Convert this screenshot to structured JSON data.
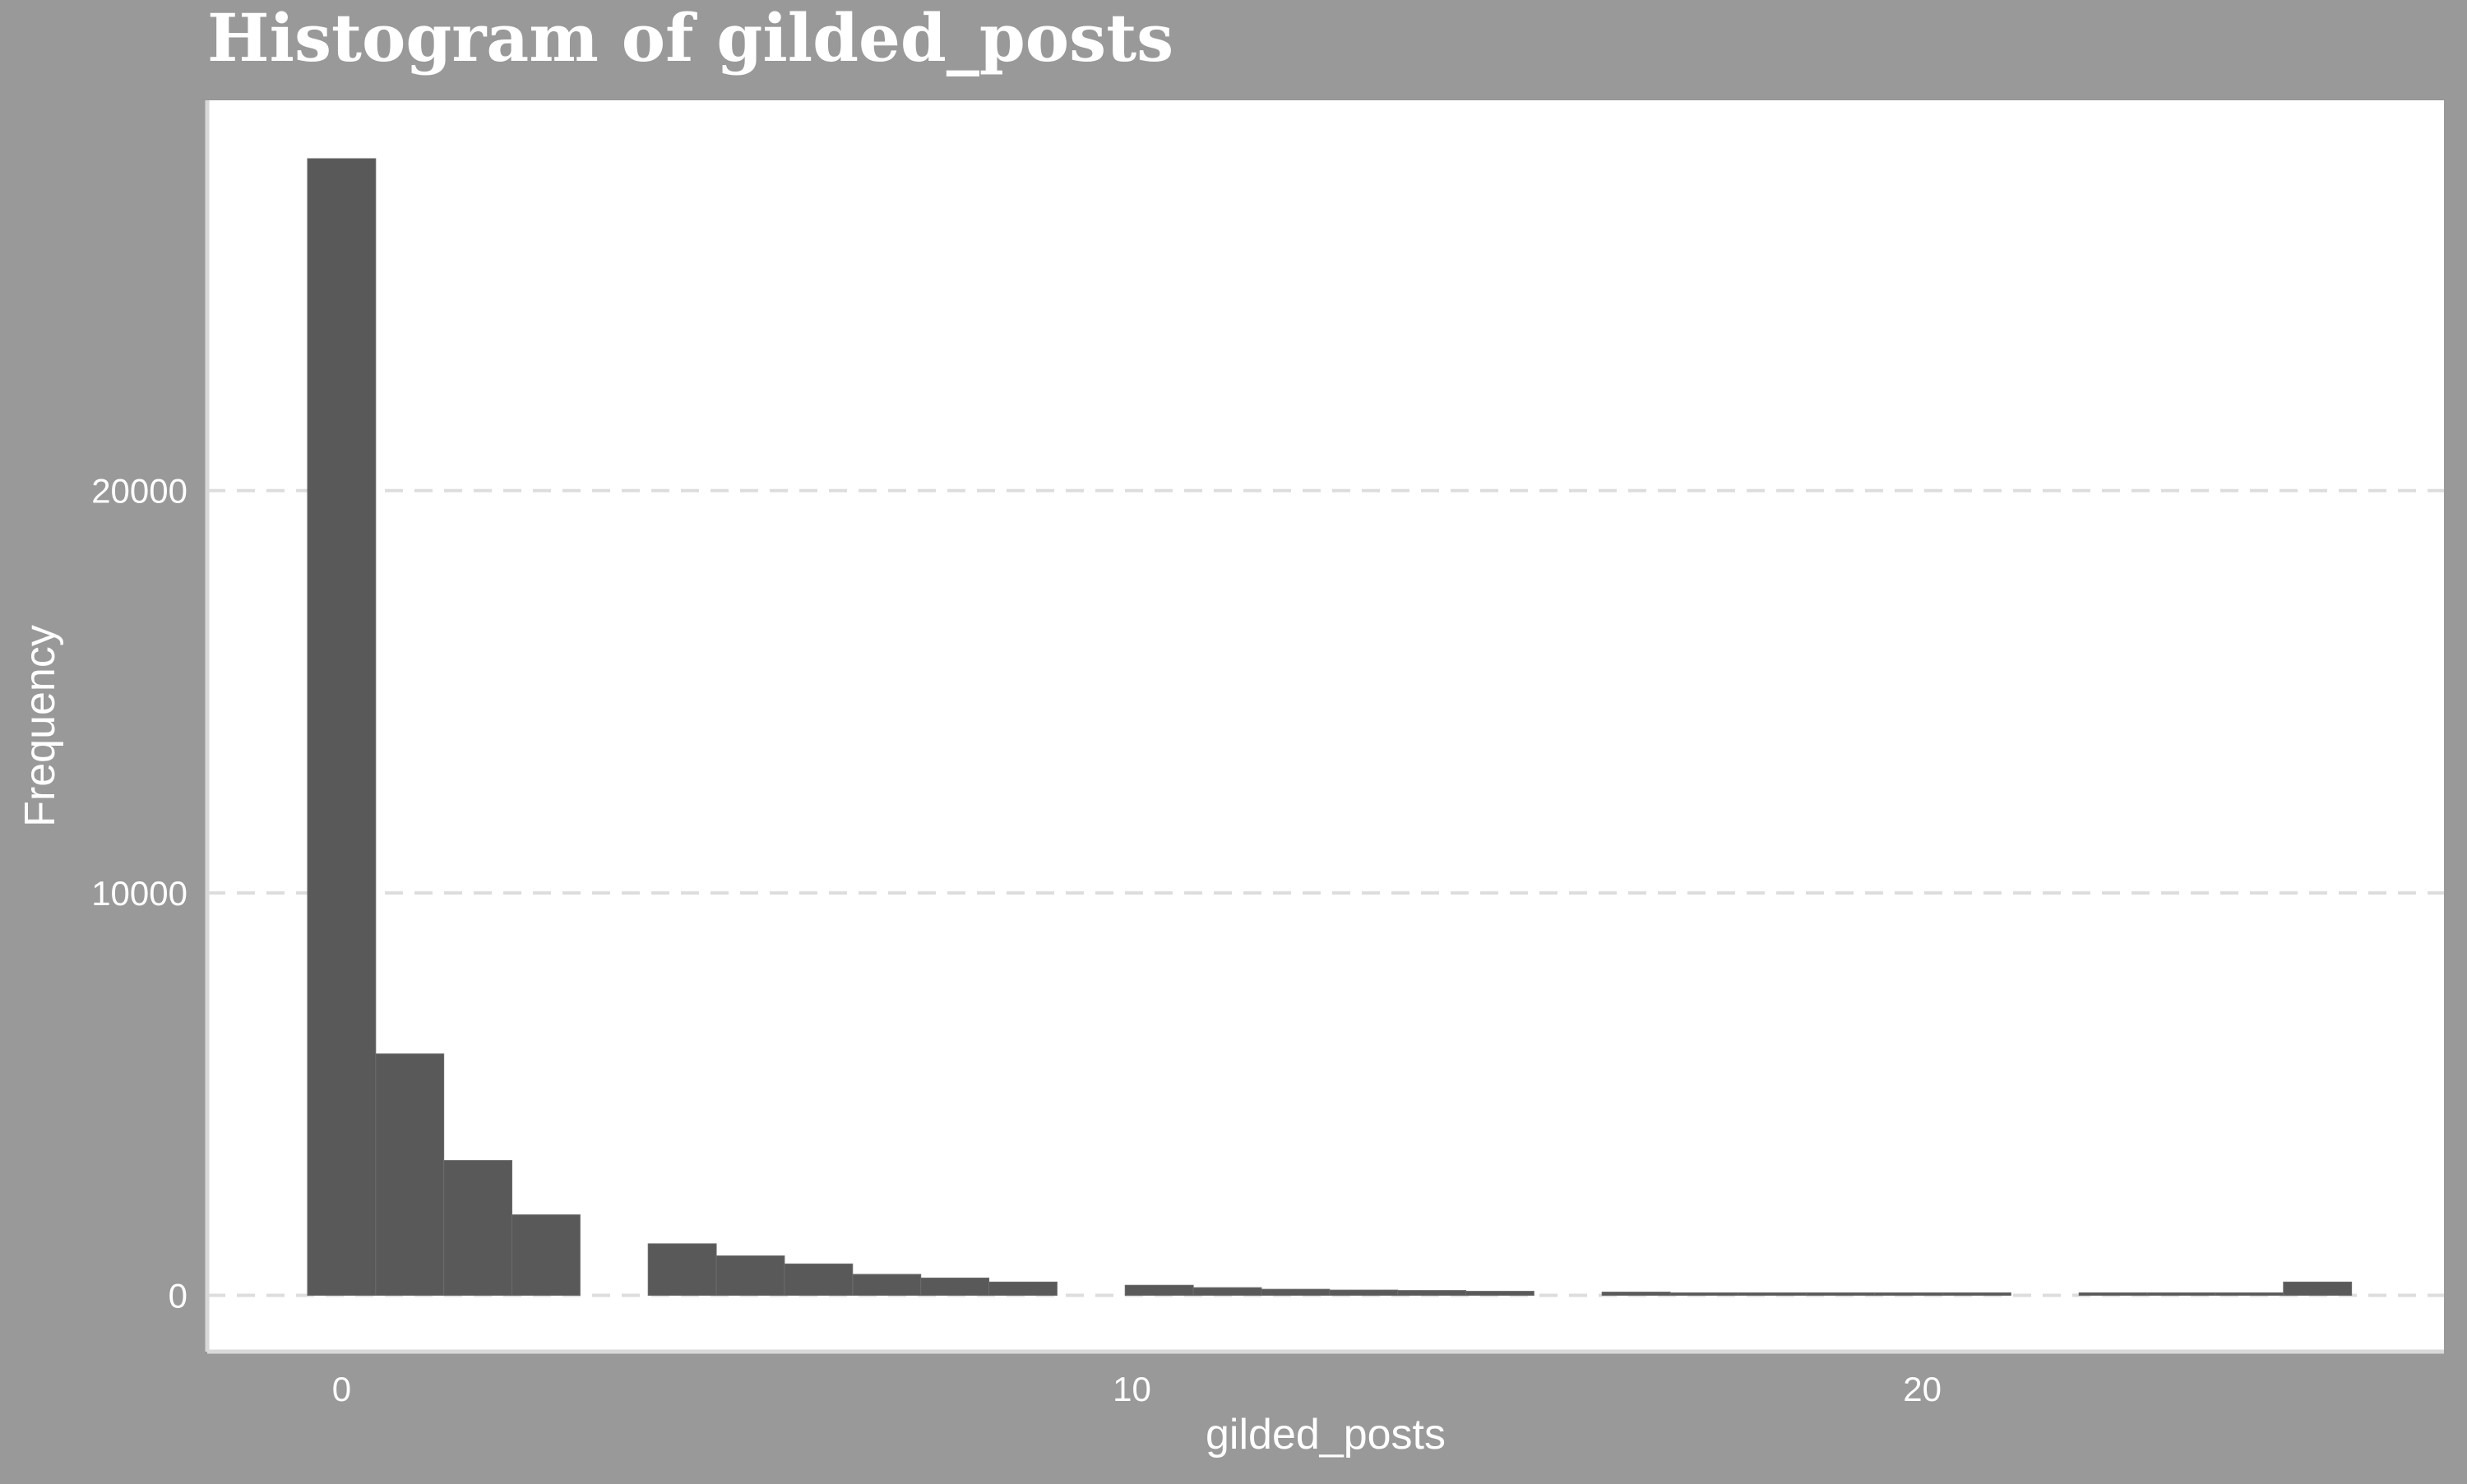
{
  "chart_data": {
    "type": "bar",
    "title": "Histogram of gilded_posts",
    "xlabel": "gilded_posts",
    "ylabel": "Frequency",
    "bin_width": 0.862,
    "bins": [
      {
        "x": 0.0,
        "count": 28250
      },
      {
        "x": 0.862,
        "count": 6000
      },
      {
        "x": 1.724,
        "count": 3350
      },
      {
        "x": 2.586,
        "count": 2000
      },
      {
        "x": 3.448,
        "count": 0
      },
      {
        "x": 4.31,
        "count": 1280
      },
      {
        "x": 5.172,
        "count": 980
      },
      {
        "x": 6.034,
        "count": 780
      },
      {
        "x": 6.897,
        "count": 520
      },
      {
        "x": 7.759,
        "count": 430
      },
      {
        "x": 8.621,
        "count": 330
      },
      {
        "x": 9.483,
        "count": 0
      },
      {
        "x": 10.345,
        "count": 250
      },
      {
        "x": 11.207,
        "count": 190
      },
      {
        "x": 12.069,
        "count": 150
      },
      {
        "x": 12.931,
        "count": 130
      },
      {
        "x": 13.793,
        "count": 120
      },
      {
        "x": 14.655,
        "count": 100
      },
      {
        "x": 15.517,
        "count": 0
      },
      {
        "x": 16.379,
        "count": 80
      },
      {
        "x": 17.241,
        "count": 60
      },
      {
        "x": 18.103,
        "count": 50
      },
      {
        "x": 18.966,
        "count": 45
      },
      {
        "x": 19.828,
        "count": 40
      },
      {
        "x": 20.69,
        "count": 30
      },
      {
        "x": 21.552,
        "count": 0
      },
      {
        "x": 22.414,
        "count": 20
      },
      {
        "x": 23.276,
        "count": 20
      },
      {
        "x": 24.138,
        "count": 15
      },
      {
        "x": 25.0,
        "count": 330
      }
    ],
    "xlim": [
      -1.7,
      26.6
    ],
    "ylim": [
      -1400,
      29700
    ],
    "xticks": [
      0,
      10,
      20
    ],
    "xtick_labels": [
      "0",
      "10",
      "20"
    ],
    "yticks": [
      0,
      10000,
      20000
    ],
    "ytick_labels": [
      "0",
      "10000",
      "20000"
    ],
    "grid": "horizontal-dashed",
    "colors": {
      "background": "#999999",
      "panel": "#ffffff",
      "bar": "#595959",
      "bar_edge": "#6b6b6b",
      "grid": "#dddddd",
      "text": "#ffffff",
      "axis_line": "#d9d9d9"
    }
  }
}
